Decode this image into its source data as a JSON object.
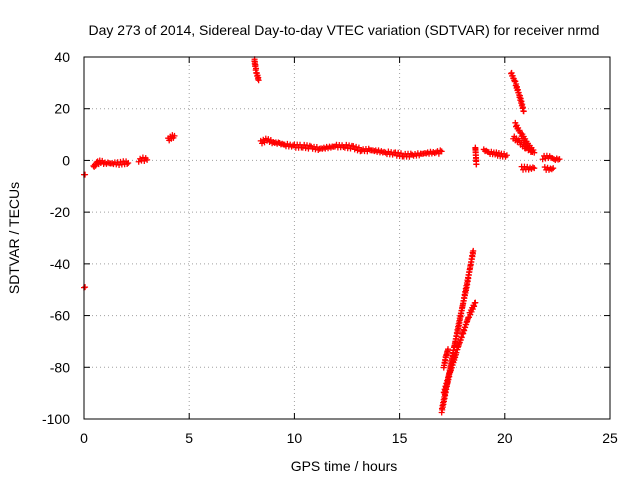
{
  "chart_data": {
    "type": "scatter",
    "title": "Day 273 of 2014, Sidereal Day-to-day VTEC variation (SDTVAR) for receiver nrmd",
    "xlabel": "GPS time / hours",
    "ylabel": "SDTVAR / TECUs",
    "xlim": [
      0,
      25
    ],
    "ylim": [
      -100,
      40
    ],
    "xticks": [
      "0",
      "5",
      "10",
      "15",
      "20",
      "25"
    ],
    "yticks": [
      "-100",
      "-80",
      "-60",
      "-40",
      "-20",
      "0",
      "20",
      "40"
    ],
    "grid": true,
    "marker": "+",
    "color": "#ff0000",
    "series": [
      {
        "name": "nrmd",
        "segments": [
          {
            "x": [
              0.0,
              0.05
            ],
            "y": [
              -5.5,
              -5.5
            ]
          },
          {
            "x": [
              0.0,
              0.05
            ],
            "y": [
              -49,
              -49
            ]
          },
          {
            "x": [
              0.45,
              0.55,
              0.65,
              0.8,
              1.0,
              1.2,
              1.4,
              1.6,
              1.8,
              2.0,
              2.1
            ],
            "y": [
              -2.5,
              -1.5,
              -1.0,
              -0.5,
              -1.0,
              -1.2,
              -1.0,
              -1.3,
              -1.0,
              -0.8,
              -1.0
            ]
          },
          {
            "x": [
              2.6,
              2.8,
              3.0
            ],
            "y": [
              0.0,
              0.5,
              0.2
            ]
          },
          {
            "x": [
              4.0,
              4.15,
              4.3
            ],
            "y": [
              8.0,
              9.0,
              9.5
            ]
          },
          {
            "x": [
              8.1,
              8.15,
              8.2,
              8.3
            ],
            "y": [
              39.0,
              36.0,
              34.0,
              31.0
            ]
          },
          {
            "x": [
              8.4,
              8.7,
              9.0,
              9.3,
              9.6,
              10.0,
              10.4,
              10.8,
              11.2,
              11.6,
              12.0,
              12.4,
              12.8,
              13.2,
              13.6,
              14.0,
              14.4,
              14.8,
              15.2,
              15.6,
              16.0,
              16.4,
              16.8,
              17.0
            ],
            "y": [
              7.0,
              8.0,
              7.0,
              6.5,
              6.0,
              5.5,
              5.5,
              5.0,
              4.5,
              5.0,
              5.5,
              5.5,
              5.0,
              4.0,
              4.0,
              3.5,
              3.0,
              2.5,
              2.0,
              2.0,
              2.5,
              3.0,
              3.0,
              3.5
            ]
          },
          {
            "x": [
              17.0,
              17.3,
              17.6,
              17.9,
              18.2,
              18.5
            ],
            "y": [
              -97,
              -85,
              -72,
              -60,
              -48,
              -35
            ]
          },
          {
            "x": [
              17.1,
              17.4,
              17.7,
              18.0,
              18.3,
              18.6
            ],
            "y": [
              -90,
              -82,
              -74,
              -67,
              -60,
              -55
            ]
          },
          {
            "x": [
              17.1,
              17.2,
              17.3
            ],
            "y": [
              -80,
              -76,
              -73
            ]
          },
          {
            "x": [
              18.6,
              18.65
            ],
            "y": [
              5.0,
              -1.5
            ]
          },
          {
            "x": [
              19.0,
              19.3,
              19.6,
              19.9,
              20.1
            ],
            "y": [
              4.0,
              3.0,
              2.5,
              2.0,
              2.0
            ]
          },
          {
            "x": [
              20.3,
              20.5,
              20.7,
              20.9
            ],
            "y": [
              34.0,
              30.0,
              25.0,
              19.0
            ]
          },
          {
            "x": [
              20.5,
              20.8,
              21.1,
              21.4
            ],
            "y": [
              14.0,
              10.0,
              6.0,
              3.0
            ]
          },
          {
            "x": [
              20.4,
              20.7,
              21.0,
              21.3
            ],
            "y": [
              9.0,
              7.0,
              5.0,
              3.5
            ]
          },
          {
            "x": [
              20.8,
              21.0,
              21.2,
              21.4
            ],
            "y": [
              -3.0,
              -3.0,
              -3.0,
              -3.0
            ]
          },
          {
            "x": [
              21.8,
              22.0,
              22.2,
              22.4,
              22.6
            ],
            "y": [
              1.0,
              1.5,
              1.0,
              0.5,
              0.5
            ]
          },
          {
            "x": [
              21.9,
              22.1,
              22.3
            ],
            "y": [
              -3.0,
              -3.5,
              -3.0
            ]
          }
        ]
      }
    ]
  }
}
